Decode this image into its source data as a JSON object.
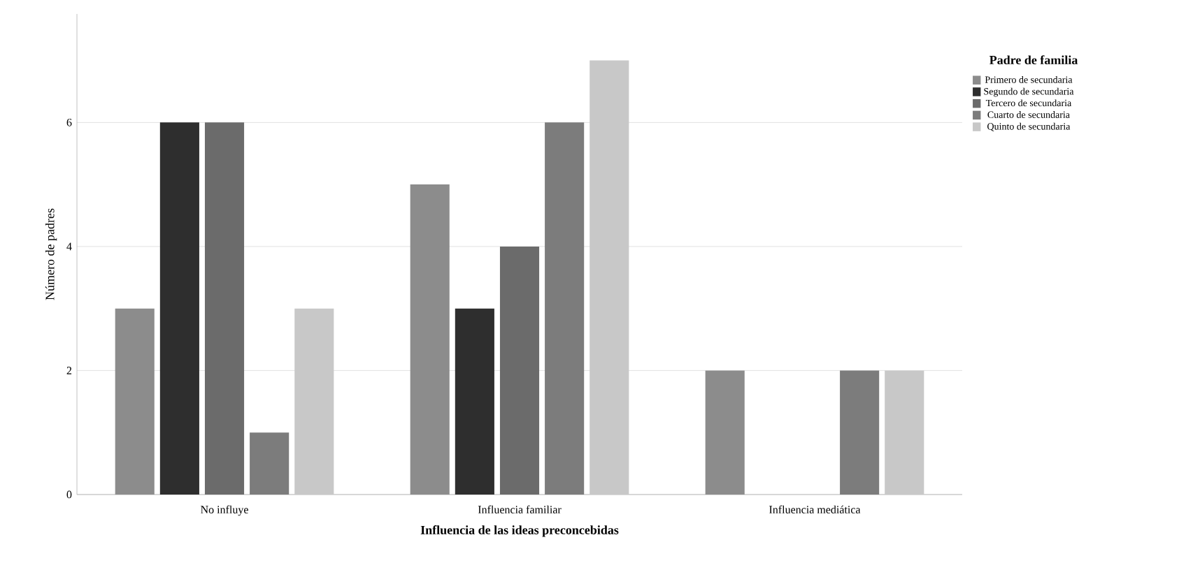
{
  "chart_data": {
    "type": "bar",
    "xlabel": "Influencia de las ideas preconcebidas",
    "ylabel": "Número de padres",
    "legend_title": "Padre de familia",
    "categories": [
      "No influye",
      "Influencia familiar",
      "Influencia mediática"
    ],
    "series": [
      {
        "name": "Primero de secundaria",
        "color": "#8c8c8c",
        "values": [
          3,
          5,
          2
        ]
      },
      {
        "name": "Segundo de secundaria",
        "color": "#2e2e2e",
        "values": [
          6,
          3,
          0
        ]
      },
      {
        "name": "Tercero de secundaria",
        "color": "#6b6b6b",
        "values": [
          6,
          4,
          0
        ]
      },
      {
        "name": "Cuarto de secundaria",
        "color": "#7c7c7c",
        "values": [
          1,
          6,
          2
        ]
      },
      {
        "name": "Quinto de secundaria",
        "color": "#c8c8c8",
        "values": [
          3,
          7,
          2
        ]
      }
    ],
    "ylim": [
      0,
      7.75
    ],
    "yticks": [
      0,
      2,
      4,
      6
    ],
    "grid": "y",
    "legend": "right"
  }
}
